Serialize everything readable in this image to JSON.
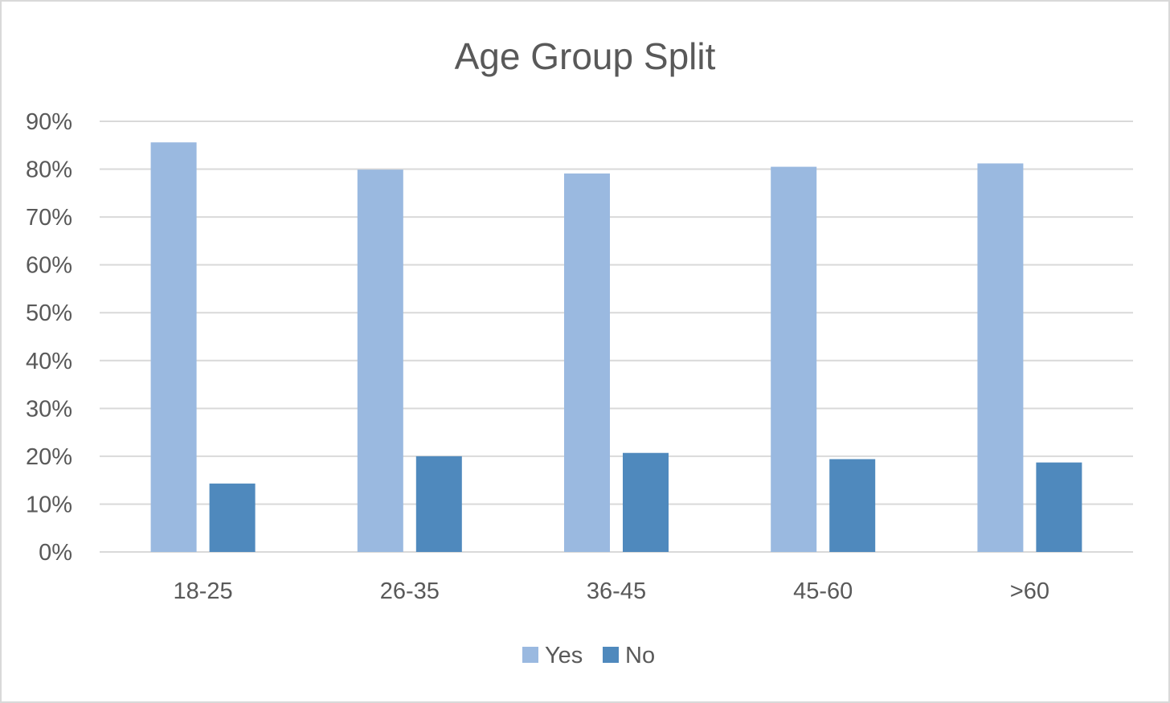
{
  "chart_data": {
    "type": "bar",
    "title": "Age Group Split",
    "xlabel": "",
    "ylabel": "",
    "categories": [
      "18-25",
      "26-35",
      "36-45",
      "45-60",
      ">60"
    ],
    "series": [
      {
        "name": "Yes",
        "values": [
          85.6,
          79.9,
          79.1,
          80.5,
          81.2
        ],
        "color": "#9ab9e0"
      },
      {
        "name": "No",
        "values": [
          14.3,
          20.0,
          20.7,
          19.4,
          18.7
        ],
        "color": "#4f89bd"
      }
    ],
    "ylim": [
      0,
      90
    ],
    "yticks": [
      "0%",
      "10%",
      "20%",
      "30%",
      "40%",
      "50%",
      "60%",
      "70%",
      "80%",
      "90%"
    ],
    "grid": true,
    "legend_position": "bottom",
    "gridline_color": "#d9d9d9",
    "text_color": "#595959"
  }
}
